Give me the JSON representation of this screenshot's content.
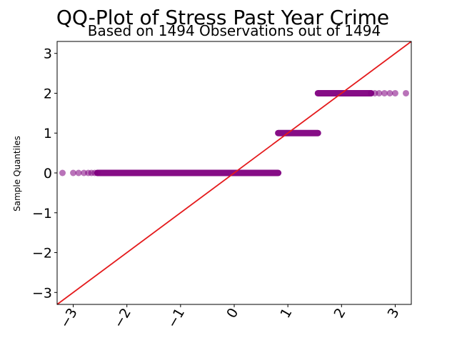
{
  "chart_data": {
    "type": "scatter",
    "title": "QQ-Plot of Stress Past Year Crime",
    "subtitle": "Based on 1494 Observations out of 1494",
    "xlabel": "",
    "ylabel": "Sample Quantiles",
    "xlim": [
      -3.3,
      3.3
    ],
    "ylim": [
      -3.3,
      3.3
    ],
    "xticks": [
      -3,
      -2,
      -1,
      0,
      1,
      2,
      3
    ],
    "yticks": [
      -3,
      -2,
      -1,
      0,
      1,
      2,
      3
    ],
    "xtick_labels": [
      "−3",
      "−2",
      "−1",
      "0",
      "1",
      "2",
      "3"
    ],
    "ytick_labels": [
      "−3",
      "−2",
      "−1",
      "0",
      "1",
      "2",
      "3"
    ],
    "grid": false,
    "point_color": "#800080",
    "line_color": "#e41a1c",
    "reference_line": {
      "slope": 1,
      "intercept": 0
    },
    "segments": [
      {
        "y": 0,
        "x_from": -3.2,
        "x_to": 0.82,
        "sparse_x": [
          -3.2,
          -3.0,
          -2.9,
          -2.8,
          -2.72,
          -2.66,
          -2.6,
          -2.55
        ]
      },
      {
        "y": 1,
        "x_from": 0.82,
        "x_to": 1.56,
        "sparse_x": []
      },
      {
        "y": 2,
        "x_from": 1.56,
        "x_to": 3.2,
        "sparse_x": [
          2.55,
          2.62,
          2.7,
          2.8,
          2.9,
          3.0,
          3.2
        ]
      }
    ]
  }
}
